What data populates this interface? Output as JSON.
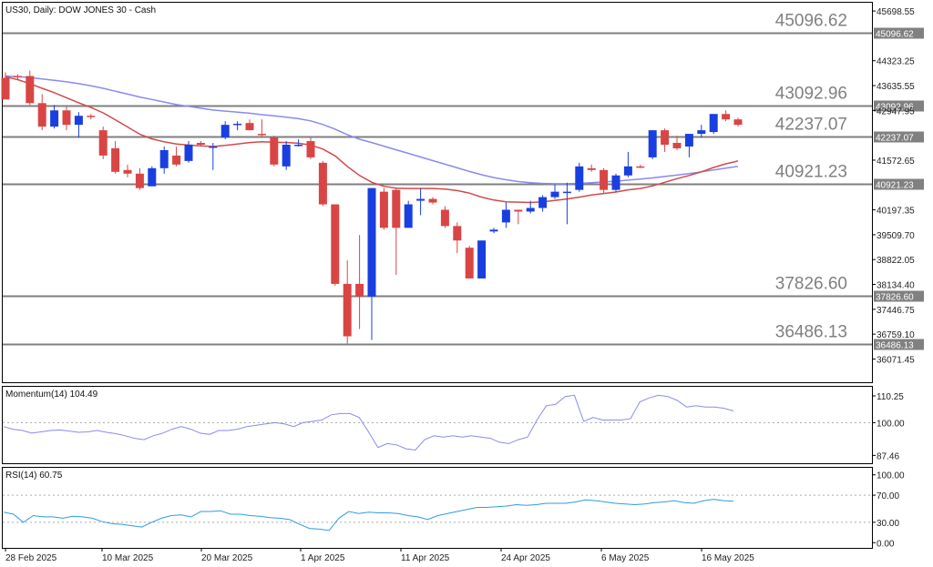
{
  "chart_data": [
    {
      "type": "candlestick",
      "title": "US30, Daily:  DOW JONES 30 - Cash",
      "yticks": [
        "45698.55",
        "45096.62",
        "44323.25",
        "43635.55",
        "42947.95",
        "42237.07",
        "41572.65",
        "40921.23",
        "40197.35",
        "39509.70",
        "38822.05",
        "38134.40",
        "37826.60",
        "37446.75",
        "36759.10",
        "36486.13",
        "36071.45"
      ],
      "xticks": [
        "28 Feb 2025",
        "10 Mar 2025",
        "20 Mar 2025",
        "1 Apr 2025",
        "11 Apr 2025",
        "24 Apr 2025",
        "6 May 2025",
        "16 May 2025"
      ],
      "levels": [
        {
          "value": 45096.62,
          "label": "45096.62"
        },
        {
          "value": 43092.96,
          "label": "43092.96"
        },
        {
          "value": 42237.07,
          "label": "42237.07"
        },
        {
          "value": 40921.23,
          "label": "40921.23"
        },
        {
          "value": 37826.6,
          "label": "37826.60"
        },
        {
          "value": 36486.13,
          "label": "36486.13"
        }
      ],
      "ylim": [
        35550,
        46000
      ],
      "candles": [
        {
          "o": 43850,
          "h": 44000,
          "l": 43300,
          "c": 43250
        },
        {
          "o": 43900,
          "h": 43950,
          "l": 43800,
          "c": 43880
        },
        {
          "o": 43900,
          "h": 44050,
          "l": 43100,
          "c": 43150
        },
        {
          "o": 43150,
          "h": 43400,
          "l": 42400,
          "c": 42500
        },
        {
          "o": 42500,
          "h": 43100,
          "l": 42450,
          "c": 42950
        },
        {
          "o": 42950,
          "h": 43050,
          "l": 42400,
          "c": 42550
        },
        {
          "o": 42550,
          "h": 42900,
          "l": 42200,
          "c": 42800
        },
        {
          "o": 42800,
          "h": 42850,
          "l": 42700,
          "c": 42780
        },
        {
          "o": 42400,
          "h": 42500,
          "l": 41600,
          "c": 41700
        },
        {
          "o": 41900,
          "h": 42100,
          "l": 41200,
          "c": 41250
        },
        {
          "o": 41300,
          "h": 41450,
          "l": 41100,
          "c": 41200
        },
        {
          "o": 41200,
          "h": 41350,
          "l": 40750,
          "c": 40800
        },
        {
          "o": 40850,
          "h": 41400,
          "l": 40850,
          "c": 41350
        },
        {
          "o": 41350,
          "h": 41950,
          "l": 41200,
          "c": 41850
        },
        {
          "o": 41700,
          "h": 41950,
          "l": 41400,
          "c": 41450
        },
        {
          "o": 41550,
          "h": 42100,
          "l": 41500,
          "c": 42000
        },
        {
          "o": 42050,
          "h": 42100,
          "l": 41950,
          "c": 42000
        },
        {
          "o": 41950,
          "h": 42050,
          "l": 41300,
          "c": 41950
        },
        {
          "o": 42200,
          "h": 42650,
          "l": 42150,
          "c": 42550
        },
        {
          "o": 42550,
          "h": 42650,
          "l": 42400,
          "c": 42580
        },
        {
          "o": 42600,
          "h": 42700,
          "l": 42400,
          "c": 42400
        },
        {
          "o": 42300,
          "h": 42700,
          "l": 42200,
          "c": 42280
        },
        {
          "o": 42200,
          "h": 42250,
          "l": 41400,
          "c": 41450
        },
        {
          "o": 41400,
          "h": 42100,
          "l": 41300,
          "c": 42000
        },
        {
          "o": 42000,
          "h": 42150,
          "l": 41950,
          "c": 42000
        },
        {
          "o": 42100,
          "h": 42200,
          "l": 41600,
          "c": 41650
        },
        {
          "o": 41500,
          "h": 41550,
          "l": 40300,
          "c": 40350
        },
        {
          "o": 40350,
          "h": 40350,
          "l": 38100,
          "c": 38150
        },
        {
          "o": 38150,
          "h": 38800,
          "l": 36500,
          "c": 36700
        },
        {
          "o": 38150,
          "h": 39500,
          "l": 36900,
          "c": 37800
        },
        {
          "o": 37800,
          "h": 40800,
          "l": 36600,
          "c": 40800
        },
        {
          "o": 40700,
          "h": 40800,
          "l": 39650,
          "c": 39700
        },
        {
          "o": 40750,
          "h": 40800,
          "l": 38400,
          "c": 39700
        },
        {
          "o": 39700,
          "h": 40450,
          "l": 39700,
          "c": 40350
        },
        {
          "o": 40450,
          "h": 40800,
          "l": 40050,
          "c": 40500
        },
        {
          "o": 40500,
          "h": 40550,
          "l": 40350,
          "c": 40400
        },
        {
          "o": 40200,
          "h": 40300,
          "l": 39700,
          "c": 39750
        },
        {
          "o": 39750,
          "h": 39850,
          "l": 39000,
          "c": 39350
        },
        {
          "o": 39150,
          "h": 39200,
          "l": 38300,
          "c": 38300
        },
        {
          "o": 38300,
          "h": 39350,
          "l": 38300,
          "c": 39350
        },
        {
          "o": 39600,
          "h": 39700,
          "l": 39550,
          "c": 39650
        },
        {
          "o": 39850,
          "h": 40400,
          "l": 39700,
          "c": 40200
        },
        {
          "o": 40200,
          "h": 40200,
          "l": 39800,
          "c": 40150
        },
        {
          "o": 40150,
          "h": 40450,
          "l": 40100,
          "c": 40250
        },
        {
          "o": 40250,
          "h": 40600,
          "l": 40150,
          "c": 40550
        },
        {
          "o": 40550,
          "h": 40900,
          "l": 40500,
          "c": 40700
        },
        {
          "o": 40700,
          "h": 40950,
          "l": 39800,
          "c": 40700
        },
        {
          "o": 40750,
          "h": 41500,
          "l": 40700,
          "c": 41400
        },
        {
          "o": 41350,
          "h": 41450,
          "l": 41250,
          "c": 41300
        },
        {
          "o": 41300,
          "h": 41350,
          "l": 40650,
          "c": 40750
        },
        {
          "o": 40750,
          "h": 41200,
          "l": 40700,
          "c": 41150
        },
        {
          "o": 41150,
          "h": 41800,
          "l": 41100,
          "c": 41400
        },
        {
          "o": 41400,
          "h": 41450,
          "l": 41350,
          "c": 41380
        },
        {
          "o": 41650,
          "h": 42400,
          "l": 41600,
          "c": 42400
        },
        {
          "o": 42400,
          "h": 42450,
          "l": 41800,
          "c": 42000
        },
        {
          "o": 42050,
          "h": 42250,
          "l": 41850,
          "c": 41900
        },
        {
          "o": 41950,
          "h": 42300,
          "l": 41650,
          "c": 42300
        },
        {
          "o": 42300,
          "h": 42550,
          "l": 42200,
          "c": 42400
        },
        {
          "o": 42350,
          "h": 42850,
          "l": 42300,
          "c": 42850
        },
        {
          "o": 42850,
          "h": 42950,
          "l": 42650,
          "c": 42700
        },
        {
          "o": 42700,
          "h": 42750,
          "l": 42500,
          "c": 42550
        }
      ],
      "ma_fast": [
        43880,
        43800,
        43690,
        43560,
        43440,
        43300,
        43160,
        43030,
        42880,
        42690,
        42490,
        42290,
        42160,
        42080,
        42020,
        41990,
        41970,
        41950,
        41980,
        42020,
        42060,
        42080,
        42070,
        42060,
        42040,
        41990,
        41880,
        41690,
        41400,
        41150,
        40960,
        40850,
        40800,
        40790,
        40790,
        40790,
        40770,
        40730,
        40660,
        40550,
        40470,
        40420,
        40410,
        40400,
        40420,
        40460,
        40500,
        40550,
        40610,
        40650,
        40690,
        40750,
        40790,
        40860,
        40960,
        41060,
        41150,
        41250,
        41370,
        41470,
        41550
      ],
      "ma_slow": [
        43900,
        43880,
        43860,
        43820,
        43780,
        43740,
        43690,
        43630,
        43560,
        43480,
        43400,
        43320,
        43250,
        43180,
        43110,
        43060,
        43010,
        42960,
        42930,
        42900,
        42870,
        42830,
        42800,
        42760,
        42720,
        42660,
        42560,
        42430,
        42280,
        42150,
        42060,
        41960,
        41860,
        41760,
        41660,
        41560,
        41460,
        41360,
        41260,
        41170,
        41090,
        41030,
        40980,
        40950,
        40930,
        40920,
        40920,
        40930,
        40950,
        40970,
        40990,
        41020,
        41050,
        41080,
        41120,
        41160,
        41200,
        41250,
        41300,
        41350,
        41400
      ]
    },
    {
      "type": "line",
      "title": "Momentum(14) 104.49",
      "yticks": [
        "110.25",
        "100.00",
        "87.46"
      ],
      "ylim": [
        85.5,
        112.0
      ],
      "values": [
        98.5,
        97.5,
        97.0,
        96.0,
        96.5,
        97.0,
        97.2,
        96.8,
        96.3,
        96.5,
        97.0,
        96.3,
        95.8,
        95.0,
        94.0,
        93.5,
        95.0,
        96.0,
        97.5,
        98.5,
        97.5,
        96.0,
        95.5,
        97.0,
        97.0,
        97.5,
        98.5,
        99.0,
        99.5,
        100.0,
        99.5,
        98.5,
        100.0,
        100.5,
        101.0,
        103.0,
        103.5,
        103.5,
        102.0,
        96.5,
        90.5,
        92.0,
        91.5,
        90.0,
        89.5,
        93.5,
        95.0,
        94.5,
        95.0,
        94.5,
        95.0,
        94.5,
        94.0,
        92.5,
        92.0,
        93.5,
        94.5,
        101.0,
        106.5,
        107.0,
        110.0,
        110.5,
        100.5,
        102.0,
        101.0,
        101.0,
        101.0,
        101.5,
        108.0,
        109.5,
        110.5,
        110.0,
        108.5,
        106.0,
        106.5,
        106.0,
        106.0,
        105.5,
        104.5
      ],
      "levels": [
        100.0
      ]
    },
    {
      "type": "line",
      "title": "RSI(14) 60.75",
      "yticks": [
        "100.00",
        "70.00",
        "30.00",
        "0.00"
      ],
      "ylim": [
        -5,
        105
      ],
      "values": [
        45,
        42,
        30,
        40,
        38,
        38,
        36,
        39,
        38,
        36,
        31,
        28,
        27,
        25,
        23,
        30,
        36,
        40,
        41,
        38,
        46,
        46,
        47,
        42,
        42,
        40,
        39,
        37,
        36,
        34,
        27,
        21,
        20,
        18,
        36,
        46,
        43,
        45,
        44,
        44,
        43,
        40,
        38,
        34,
        40,
        43,
        46,
        49,
        52,
        52,
        53,
        54,
        56,
        55,
        56,
        58,
        58,
        58,
        60,
        63,
        62,
        60,
        58,
        57,
        56,
        57,
        59,
        60,
        62,
        59,
        58,
        62,
        64,
        62,
        61
      ],
      "levels": [
        70,
        30
      ]
    }
  ]
}
